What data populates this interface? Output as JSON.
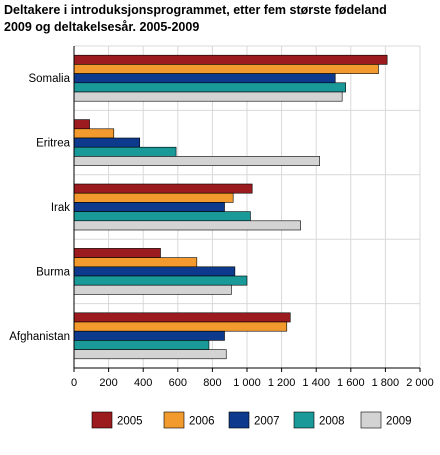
{
  "chart_data": {
    "type": "bar",
    "orientation": "horizontal",
    "title": "Deltakere i introduksjonsprogrammet, etter fem største fødeland\n2009 og deltakelsesår. 2005-2009",
    "xlabel": "",
    "ylabel": "",
    "xlim": [
      0,
      2000
    ],
    "xticks": [
      0,
      200,
      400,
      600,
      800,
      1000,
      1200,
      1400,
      1600,
      1800,
      2000
    ],
    "xtick_labels": [
      "0",
      "200",
      "400",
      "600",
      "800",
      "1 000",
      "1 200",
      "1 400",
      "1 600",
      "1 800",
      "2 000"
    ],
    "grid": "vertical",
    "legend_position": "bottom",
    "categories": [
      "Somalia",
      "Eritrea",
      "Irak",
      "Burma",
      "Afghanistan"
    ],
    "series": [
      {
        "name": "2005",
        "color": "#9b1b1f",
        "values": [
          1810,
          90,
          1030,
          500,
          1250
        ]
      },
      {
        "name": "2006",
        "color": "#f39a2e",
        "values": [
          1760,
          230,
          920,
          710,
          1230
        ]
      },
      {
        "name": "2007",
        "color": "#0d3a8c",
        "values": [
          1510,
          380,
          870,
          930,
          870
        ]
      },
      {
        "name": "2008",
        "color": "#1a9999",
        "values": [
          1570,
          590,
          1020,
          1000,
          780
        ]
      },
      {
        "name": "2009",
        "color": "#d3d3d3",
        "values": [
          1550,
          1420,
          1310,
          910,
          880
        ]
      }
    ]
  }
}
